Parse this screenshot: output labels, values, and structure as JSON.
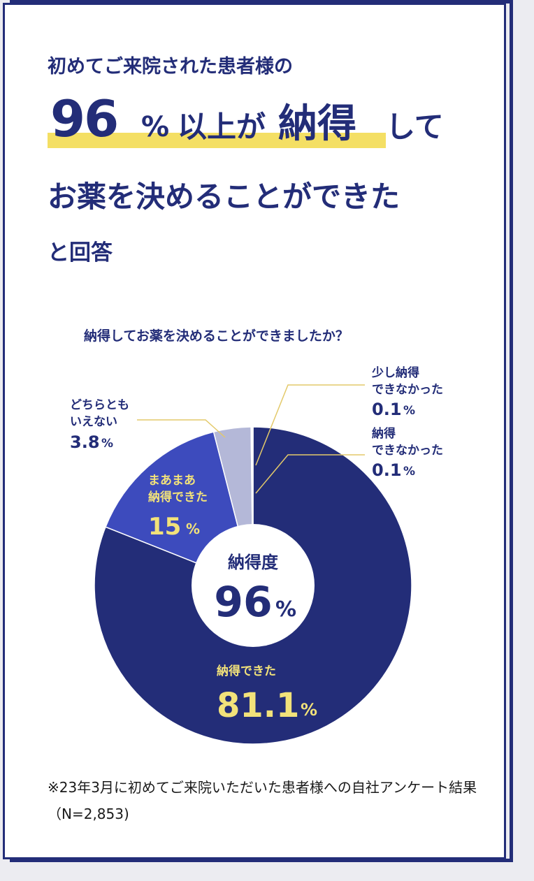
{
  "heading": {
    "lead": "初めてご来院された患者様の",
    "headline_number": "96",
    "headline_percent": "%",
    "headline_mid": "以上が",
    "headline_emphasis": "納得",
    "headline_tail": "して",
    "line2": "お薬を決めることができた",
    "line3": "と回答"
  },
  "question": "納得してお薬を決めることができましたか？",
  "center_label": {
    "title": "納得度",
    "value": "96",
    "unit": "%"
  },
  "chart_data": {
    "type": "pie",
    "style": "donut",
    "categories": [
      "納得できた",
      "まあまあ納得できた",
      "どちらともいえない",
      "少し納得できなかった",
      "納得できなかった"
    ],
    "values": [
      81.1,
      15,
      3.8,
      0.1,
      0.1
    ],
    "colors": [
      "#232d78",
      "#3d4bbd",
      "#b4b8d8",
      "#b4b8d8",
      "#b4b8d8"
    ],
    "labels": [
      {
        "lines": [
          "納得できた"
        ],
        "value": "81.1",
        "unit": "%"
      },
      {
        "lines": [
          "まあまあ",
          "納得できた"
        ],
        "value": "15",
        "unit": "%"
      },
      {
        "lines": [
          "どちらとも",
          "いえない"
        ],
        "value": "3.8",
        "unit": "%"
      },
      {
        "lines": [
          "少し納得",
          "できなかった"
        ],
        "value": "0.1",
        "unit": "%"
      },
      {
        "lines": [
          "納得",
          "できなかった"
        ],
        "value": "0.1",
        "unit": "%"
      }
    ]
  },
  "note": "※23年3月に初めてご来院いただいた患者様への自社アンケート結果（N=2,853)",
  "colors": {
    "navy": "#232d78",
    "accent_yellow": "#f4df64",
    "label_yellow": "#f2e27a",
    "callout_line": "#e3c96a"
  }
}
